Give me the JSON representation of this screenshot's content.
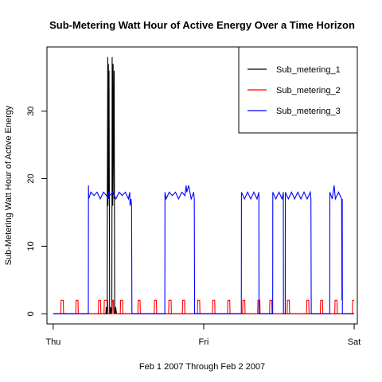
{
  "chart_data": {
    "type": "line",
    "title": "Sub-Metering Watt Hour of Active Energy Over a Time Horizon",
    "xlabel": "Feb 1 2007 Through Feb 2 2007",
    "ylabel": "Sub-Metering Watt Hour of Active Energy",
    "x_unit": "hours since Thu 2007-02-01 00:00",
    "xlim": [
      -1.0,
      48.5
    ],
    "ylim": [
      -1.5,
      39.5
    ],
    "x_ticks": [
      {
        "x": 0,
        "label": "Thu"
      },
      {
        "x": 24,
        "label": "Fri"
      },
      {
        "x": 48,
        "label": "Sat"
      }
    ],
    "y_ticks": [
      {
        "y": 0,
        "label": "0"
      },
      {
        "y": 10,
        "label": "10"
      },
      {
        "y": 20,
        "label": "20"
      },
      {
        "y": 30,
        "label": "30"
      }
    ],
    "grid": false,
    "legend_position": "top-right",
    "series": [
      {
        "name": "Sub_metering_1",
        "color": "#000000",
        "x": [
          0,
          8.4,
          8.45,
          8.5,
          8.6,
          8.62,
          8.7,
          8.72,
          8.8,
          8.85,
          8.9,
          9.0,
          9.1,
          9.15,
          9.3,
          9.35,
          9.4,
          9.5,
          9.55,
          9.7,
          9.72,
          9.8,
          9.9,
          9.95,
          10.1,
          10.2,
          48.0
        ],
        "y": [
          0,
          0,
          1,
          0,
          0,
          16,
          38,
          16,
          37,
          17,
          36,
          0,
          0,
          1,
          0,
          1,
          38,
          16,
          37,
          17,
          36,
          0,
          0,
          1,
          0,
          0,
          0
        ]
      },
      {
        "name": "Sub_metering_2",
        "color": "#ff0000",
        "x": [
          0,
          1.2,
          1.25,
          1.6,
          1.65,
          2.2,
          2.3,
          3.6,
          3.65,
          3.95,
          4.0,
          7.2,
          7.25,
          7.55,
          7.6,
          8.1,
          8.15,
          8.7,
          8.75,
          9.4,
          9.45,
          9.6,
          9.65,
          10.7,
          10.75,
          11.05,
          11.1,
          13.5,
          13.55,
          13.85,
          13.9,
          16.1,
          16.15,
          16.45,
          16.5,
          18.4,
          18.45,
          18.8,
          18.85,
          19.2,
          19.25,
          20.6,
          20.65,
          20.95,
          21.0,
          23.0,
          23.05,
          23.35,
          23.4,
          25.4,
          25.45,
          25.75,
          25.8,
          27.8,
          27.85,
          28.15,
          28.2,
          30.2,
          30.25,
          30.55,
          30.6,
          32.6,
          32.65,
          32.95,
          33.0,
          34.5,
          34.55,
          34.85,
          34.9,
          37.3,
          37.35,
          37.65,
          37.7,
          40.4,
          40.45,
          40.75,
          40.8,
          42.6,
          42.65,
          42.95,
          43.0,
          44.9,
          44.95,
          45.25,
          45.3,
          47.7,
          47.75,
          48.0
        ],
        "y": [
          0,
          0,
          2,
          2,
          0,
          0,
          0,
          0,
          2,
          2,
          0,
          0,
          2,
          2,
          0,
          0,
          2,
          2,
          0,
          0,
          2,
          2,
          0,
          0,
          2,
          2,
          0,
          0,
          2,
          2,
          0,
          0,
          2,
          2,
          0,
          0,
          2,
          2,
          0,
          0,
          0,
          0,
          2,
          2,
          0,
          0,
          2,
          2,
          0,
          0,
          2,
          2,
          0,
          0,
          2,
          2,
          0,
          0,
          2,
          2,
          0,
          0,
          2,
          2,
          0,
          0,
          2,
          2,
          0,
          0,
          2,
          2,
          0,
          0,
          2,
          2,
          0,
          0,
          2,
          2,
          0,
          0,
          2,
          2,
          0,
          0,
          2,
          2
        ]
      },
      {
        "name": "Sub_metering_3",
        "color": "#0000ff",
        "x": [
          0,
          5.6,
          5.62,
          5.65,
          6.0,
          6.5,
          7.0,
          7.5,
          8.0,
          8.5,
          8.75,
          8.8,
          9.0,
          9.5,
          10.0,
          10.5,
          11.0,
          11.5,
          12.0,
          12.2,
          12.25,
          12.4,
          12.5,
          12.55,
          17.8,
          17.82,
          18.0,
          18.5,
          19.0,
          19.5,
          20.0,
          20.5,
          21.0,
          21.2,
          21.3,
          21.6,
          21.8,
          22.0,
          22.4,
          22.5,
          22.55,
          30.0,
          30.02,
          30.5,
          31.0,
          31.5,
          32.0,
          32.5,
          32.8,
          32.82,
          35.0,
          35.02,
          35.5,
          36.0,
          36.5,
          36.7,
          36.72,
          37.0,
          37.02,
          37.5,
          38.0,
          38.5,
          39.0,
          39.5,
          40.0,
          40.5,
          41.0,
          41.1,
          41.15,
          44.1,
          44.12,
          44.5,
          44.8,
          45.0,
          45.5,
          46.0,
          46.05,
          46.1,
          46.12,
          48.0
        ],
        "y": [
          0,
          0,
          19,
          17,
          18,
          17.5,
          18,
          17,
          18,
          17.5,
          17,
          18,
          17.5,
          18,
          17,
          18,
          17.5,
          18,
          17,
          18,
          16,
          17,
          16,
          0,
          0,
          18,
          17,
          18,
          17.5,
          18,
          17,
          18,
          17.5,
          19,
          18,
          19,
          18,
          17,
          18,
          17,
          0,
          0,
          18,
          17,
          18,
          17,
          18,
          17,
          18,
          0,
          0,
          18,
          17,
          18,
          17,
          18,
          0,
          0,
          18,
          17,
          18,
          17,
          18,
          17,
          18,
          17,
          18,
          17,
          0,
          0,
          18,
          17,
          19,
          17,
          18,
          17,
          2,
          17,
          0,
          0
        ]
      }
    ]
  }
}
